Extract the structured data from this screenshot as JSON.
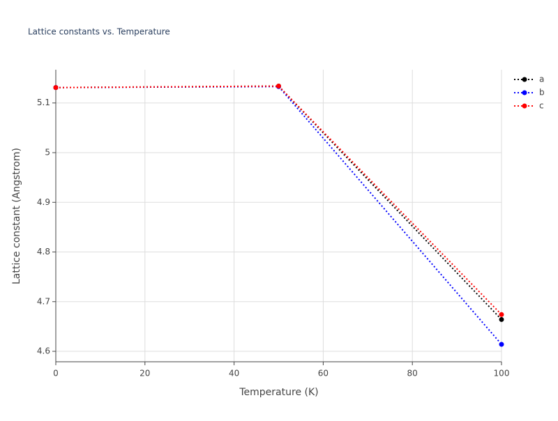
{
  "chart_data": {
    "type": "line",
    "title": "Lattice constants vs. Temperature",
    "xlabel": "Temperature (K)",
    "ylabel": "Lattice constant (Angstrom)",
    "x": [
      0,
      50,
      100
    ],
    "series": [
      {
        "name": "a",
        "color": "#000000",
        "values": [
          5.131,
          5.134,
          4.664
        ]
      },
      {
        "name": "b",
        "color": "#0000ff",
        "values": [
          5.131,
          5.133,
          4.614
        ]
      },
      {
        "name": "c",
        "color": "#ff0000",
        "values": [
          5.131,
          5.134,
          4.674
        ]
      }
    ],
    "xlim": [
      0,
      100
    ],
    "xticks": [
      0,
      20,
      40,
      60,
      80,
      100
    ],
    "ylim": [
      4.579,
      5.167
    ],
    "yticks": [
      4.6,
      4.7,
      4.8,
      4.9,
      5,
      5.1
    ],
    "grid": true,
    "legend": "top-right"
  }
}
